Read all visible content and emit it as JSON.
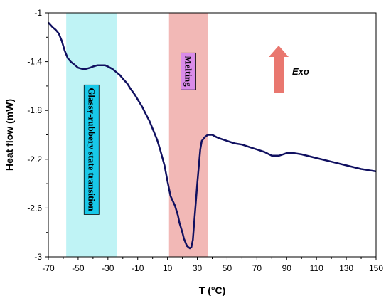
{
  "chart_data": {
    "type": "line",
    "xlabel": "T (°C)",
    "ylabel": "Heat flow (mW)",
    "xlim": [
      -70,
      150
    ],
    "ylim": [
      -3.0,
      -1.0
    ],
    "x_ticks": [
      "-70",
      "-50",
      "-30",
      "-10",
      "10",
      "30",
      "50",
      "70",
      "90",
      "110",
      "130",
      "150"
    ],
    "y_ticks": [
      "-1",
      "-1.4",
      "-1.8",
      "-2.2",
      "-2.6",
      "-3"
    ],
    "series": [
      {
        "color": "#101060",
        "x": [
          -70,
          -67,
          -65,
          -63,
          -61,
          -59,
          -57,
          -55,
          -52,
          -50,
          -47,
          -45,
          -42,
          -40,
          -37,
          -35,
          -32,
          -30,
          -27,
          -25,
          -22,
          -20,
          -17,
          -15,
          -12,
          -10,
          -7,
          -5,
          -2,
          0,
          3,
          5,
          8,
          10,
          12,
          15,
          17,
          18,
          20,
          21,
          22,
          23,
          24,
          25,
          26,
          27,
          28,
          29,
          30,
          31,
          32,
          33,
          35,
          37,
          40,
          43,
          45,
          50,
          55,
          60,
          65,
          70,
          75,
          80,
          85,
          90,
          95,
          100,
          110,
          120,
          130,
          140,
          145,
          150
        ],
        "y": [
          -1.08,
          -1.12,
          -1.14,
          -1.17,
          -1.23,
          -1.31,
          -1.37,
          -1.4,
          -1.43,
          -1.45,
          -1.46,
          -1.46,
          -1.45,
          -1.44,
          -1.43,
          -1.43,
          -1.43,
          -1.44,
          -1.46,
          -1.48,
          -1.51,
          -1.54,
          -1.58,
          -1.62,
          -1.67,
          -1.71,
          -1.77,
          -1.82,
          -1.89,
          -1.95,
          -2.04,
          -2.12,
          -2.25,
          -2.38,
          -2.5,
          -2.58,
          -2.66,
          -2.72,
          -2.8,
          -2.85,
          -2.88,
          -2.91,
          -2.92,
          -2.93,
          -2.92,
          -2.86,
          -2.7,
          -2.55,
          -2.4,
          -2.26,
          -2.12,
          -2.05,
          -2.02,
          -2.0,
          -2.0,
          -2.02,
          -2.03,
          -2.05,
          -2.07,
          -2.08,
          -2.1,
          -2.12,
          -2.14,
          -2.17,
          -2.17,
          -2.15,
          -2.15,
          -2.16,
          -2.19,
          -2.22,
          -2.25,
          -2.28,
          -2.29,
          -2.3
        ]
      }
    ],
    "bands": [
      {
        "label": "Glassy-rubbery state transition",
        "x_range": [
          -58,
          -24
        ],
        "color": "#bff3f5"
      },
      {
        "label": "Melting",
        "x_range": [
          11,
          37
        ],
        "color": "#f2b8b6"
      }
    ],
    "annotations": {
      "exo_label": "Exo",
      "exo_direction": "up",
      "exo_color": "#e9776f"
    },
    "grid": false
  }
}
